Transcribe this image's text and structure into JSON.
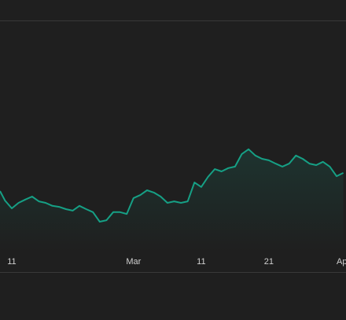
{
  "chart_data": {
    "type": "area",
    "x": [
      9.26,
      10,
      11,
      12,
      13,
      14,
      15,
      16,
      17,
      18,
      19,
      20,
      21,
      22,
      23,
      24,
      25,
      26,
      27,
      28,
      29,
      30,
      31,
      32,
      33,
      34,
      35,
      36,
      37,
      38,
      39,
      40,
      41,
      42,
      43,
      44,
      45,
      46,
      47,
      48,
      49,
      50,
      51,
      52,
      53,
      54,
      55,
      56,
      57,
      58,
      59,
      60
    ],
    "values": [
      32.2,
      28.4,
      25.3,
      27.5,
      28.8,
      30,
      28.1,
      27.5,
      26.3,
      25.9,
      25,
      24.4,
      26.3,
      25,
      23.8,
      20,
      20.6,
      23.8,
      23.8,
      23.1,
      29.4,
      30.6,
      32.5,
      31.6,
      30,
      27.5,
      28.1,
      27.5,
      28.1,
      35.6,
      33.8,
      37.8,
      40.9,
      40,
      41.3,
      41.9,
      46.9,
      48.8,
      46.3,
      45,
      44.4,
      43.1,
      41.9,
      43.1,
      46.3,
      45,
      43.1,
      42.5,
      43.8,
      41.9,
      38.1,
      39.4
    ],
    "color": "#16a085",
    "xlim": [
      9.26,
      60.4
    ],
    "ylim": [
      0,
      100
    ],
    "xticks": [
      {
        "value": 11,
        "label": "11"
      },
      {
        "value": 29,
        "label": "Mar"
      },
      {
        "value": 39,
        "label": "11"
      },
      {
        "value": 49,
        "label": "21"
      },
      {
        "value": 60,
        "label": "Apr"
      }
    ]
  }
}
